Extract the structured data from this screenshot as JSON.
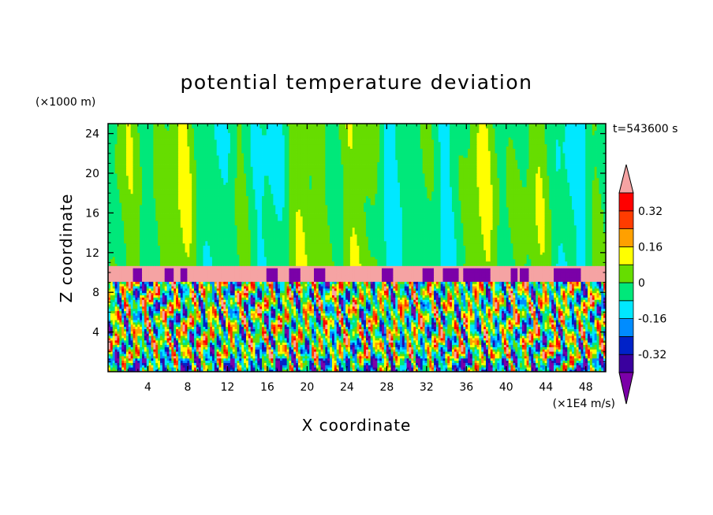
{
  "chart_data": {
    "type": "heatmap",
    "title": "potential temperature deviation",
    "time_label": "t=543600 s",
    "xlabel": "X coordinate",
    "ylabel": "Z coordinate",
    "x_unit": "(×1E4 m/s)",
    "y_unit": "(×1000 m)",
    "xlim": [
      0,
      50
    ],
    "ylim": [
      0,
      25
    ],
    "x_ticks": [
      4,
      8,
      12,
      16,
      20,
      24,
      28,
      32,
      36,
      40,
      44,
      48
    ],
    "y_ticks": [
      4,
      8,
      12,
      16,
      20,
      24
    ],
    "colorbar": {
      "levels": [
        -0.4,
        -0.32,
        -0.24,
        -0.16,
        -0.08,
        0,
        0.08,
        0.16,
        0.24,
        0.32,
        0.4
      ],
      "labels": [
        "0.32",
        "0.16",
        "0",
        "-0.16",
        "-0.32"
      ],
      "label_values": [
        0.32,
        0.16,
        0,
        -0.16,
        -0.32
      ],
      "colors": [
        "#7b00a8",
        "#3a009e",
        "#0022c8",
        "#008cff",
        "#00e8ff",
        "#00e87a",
        "#66dd00",
        "#ffff00",
        "#ffa000",
        "#ff3c00",
        "#ff0000",
        "#f5a3a3"
      ],
      "extend": "both"
    },
    "regions": {
      "upper_layer": {
        "z_range": [
          10.7,
          25
        ],
        "dominant": "near 0 (green / cyan / yellow bands)"
      },
      "inversion_band": {
        "z_range": [
          9.2,
          10.7
        ],
        "dominant": "above 0.4 (pink) with purple cells"
      },
      "convective_layer": {
        "z_range": [
          0,
          9.2
        ],
        "dominant": "mixed, full range"
      }
    }
  }
}
